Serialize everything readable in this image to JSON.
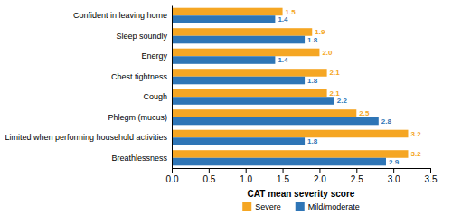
{
  "chart_data": {
    "type": "bar",
    "orientation": "horizontal",
    "categories": [
      "Breathlessness",
      "Limited when performing household activities",
      "Phlegm (mucus)",
      "Cough",
      "Chest tightness",
      "Energy",
      "Sleep soundly",
      "Confident in leaving home"
    ],
    "series": [
      {
        "name": "Severe",
        "color": "#F5A623",
        "values": [
          3.2,
          3.2,
          2.5,
          2.1,
          2.1,
          2.0,
          1.9,
          1.5
        ],
        "value_labels": [
          "3.2",
          "3.2",
          "2.5",
          "2.1",
          "2.1",
          "2.0",
          "1.9",
          "1.5"
        ]
      },
      {
        "name": "Mild/moderate",
        "color": "#2E75B6",
        "values": [
          2.9,
          1.8,
          2.8,
          2.2,
          1.8,
          1.4,
          1.8,
          1.4
        ]
      }
    ],
    "xlabel": "CAT mean severity score",
    "xlim": [
      0,
      3.5
    ],
    "xticks": [
      {
        "value": 0,
        "label": "0.0"
      },
      0.5,
      {
        "value": 1,
        "label": "1.0"
      },
      1.5,
      {
        "value": 2,
        "label": "2.0"
      },
      2.5,
      {
        "value": 3,
        "label": "3.0"
      },
      3.5
    ],
    "grid": false,
    "legend": "bottom",
    "data_labels": true
  }
}
